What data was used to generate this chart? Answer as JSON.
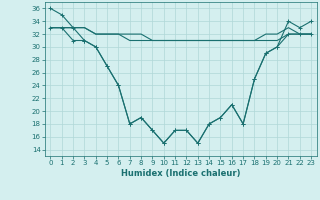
{
  "x": [
    0,
    1,
    2,
    3,
    4,
    5,
    6,
    7,
    8,
    9,
    10,
    11,
    12,
    13,
    14,
    15,
    16,
    17,
    18,
    19,
    20,
    21,
    22,
    23
  ],
  "line_v1": [
    36,
    35,
    33,
    31,
    30,
    27,
    24,
    18,
    19,
    17,
    15,
    17,
    17,
    15,
    18,
    19,
    21,
    18,
    25,
    29,
    30,
    34,
    33,
    34
  ],
  "line_v2": [
    33,
    33,
    31,
    31,
    30,
    27,
    24,
    18,
    19,
    17,
    15,
    17,
    17,
    15,
    18,
    19,
    21,
    18,
    25,
    29,
    30,
    32,
    32,
    32
  ],
  "line_flat1": [
    33,
    33,
    33,
    33,
    32,
    32,
    32,
    32,
    32,
    31,
    31,
    31,
    31,
    31,
    31,
    31,
    31,
    31,
    31,
    32,
    32,
    33,
    32,
    32
  ],
  "line_flat2": [
    33,
    33,
    33,
    33,
    32,
    32,
    32,
    31,
    31,
    31,
    31,
    31,
    31,
    31,
    31,
    31,
    31,
    31,
    31,
    31,
    31,
    32,
    32,
    32
  ],
  "bg_color": "#d4efef",
  "line_color": "#1a7070",
  "grid_color": "#b0d8d8",
  "xlabel": "Humidex (Indice chaleur)",
  "ylim": [
    13,
    37
  ],
  "xlim": [
    -0.5,
    23.5
  ],
  "yticks": [
    14,
    16,
    18,
    20,
    22,
    24,
    26,
    28,
    30,
    32,
    34,
    36
  ],
  "xticks": [
    0,
    1,
    2,
    3,
    4,
    5,
    6,
    7,
    8,
    9,
    10,
    11,
    12,
    13,
    14,
    15,
    16,
    17,
    18,
    19,
    20,
    21,
    22,
    23
  ]
}
